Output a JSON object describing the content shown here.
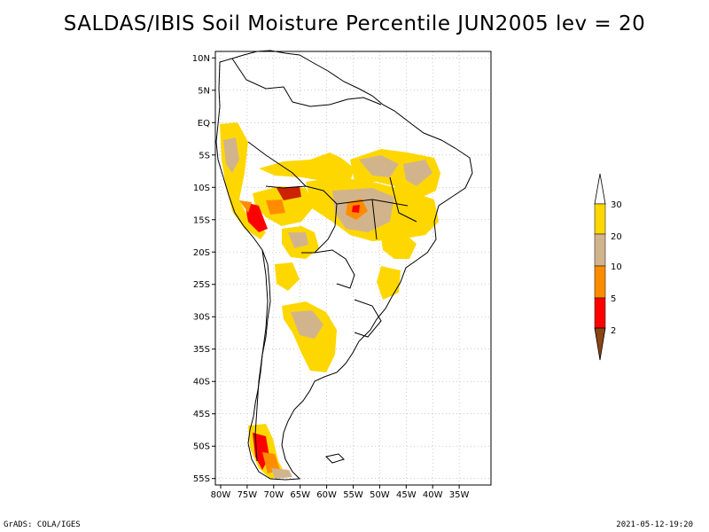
{
  "title": "SALDAS/IBIS Soil Moisture Percentile JUN2005 lev = 20",
  "footer": {
    "left": "GrADS: COLA/IGES",
    "right": "2021-05-12-19:20"
  },
  "map": {
    "projection": "lat-lon",
    "lon_range": [
      -81,
      -29
    ],
    "lat_range": [
      -56,
      11
    ],
    "grid": true,
    "lat_ticks": [
      {
        "value": 10,
        "label": "10N"
      },
      {
        "value": 5,
        "label": "5N"
      },
      {
        "value": 0,
        "label": "EQ"
      },
      {
        "value": -5,
        "label": "5S"
      },
      {
        "value": -10,
        "label": "10S"
      },
      {
        "value": -15,
        "label": "15S"
      },
      {
        "value": -20,
        "label": "20S"
      },
      {
        "value": -25,
        "label": "25S"
      },
      {
        "value": -30,
        "label": "30S"
      },
      {
        "value": -35,
        "label": "35S"
      },
      {
        "value": -40,
        "label": "40S"
      },
      {
        "value": -45,
        "label": "45S"
      },
      {
        "value": -50,
        "label": "50S"
      },
      {
        "value": -55,
        "label": "55S"
      }
    ],
    "lon_ticks": [
      {
        "value": -80,
        "label": "80W"
      },
      {
        "value": -75,
        "label": "75W"
      },
      {
        "value": -70,
        "label": "70W"
      },
      {
        "value": -65,
        "label": "65W"
      },
      {
        "value": -60,
        "label": "60W"
      },
      {
        "value": -55,
        "label": "55W"
      },
      {
        "value": -50,
        "label": "50W"
      },
      {
        "value": -45,
        "label": "45W"
      },
      {
        "value": -40,
        "label": "40W"
      },
      {
        "value": -35,
        "label": "35W"
      }
    ]
  },
  "colorbar": {
    "bins": [
      {
        "label": "2",
        "color": "#8b4513"
      },
      {
        "label": "5",
        "color": "#ff0000"
      },
      {
        "label": "10",
        "color": "#ff8c00"
      },
      {
        "label": "20",
        "color": "#d2b48c"
      },
      {
        "label": "30",
        "color": "#ffd700"
      }
    ],
    "top_color": "#ffffff",
    "bottom_color": "#8b4513"
  },
  "colors": {
    "frame": "#000000",
    "grid": "#aaaaaa",
    "coast": "#000000"
  },
  "anomaly_patches": [
    {
      "id": "amazon-north",
      "lon": -57,
      "lat": -3,
      "level": "30"
    },
    {
      "id": "northeast-brazil",
      "lon": -48,
      "lat": -7,
      "level": "20"
    },
    {
      "id": "central-brazil",
      "lon": -53,
      "lat": -12,
      "level": "20"
    },
    {
      "id": "bolivia-west",
      "lon": -66,
      "lat": -10,
      "level": "5"
    },
    {
      "id": "peru-south",
      "lon": -73,
      "lat": -14,
      "level": "5"
    },
    {
      "id": "patagonia-south",
      "lon": -72,
      "lat": -50,
      "level": "10"
    },
    {
      "id": "argentina-pampas",
      "lon": -61,
      "lat": -31,
      "level": "20"
    }
  ]
}
